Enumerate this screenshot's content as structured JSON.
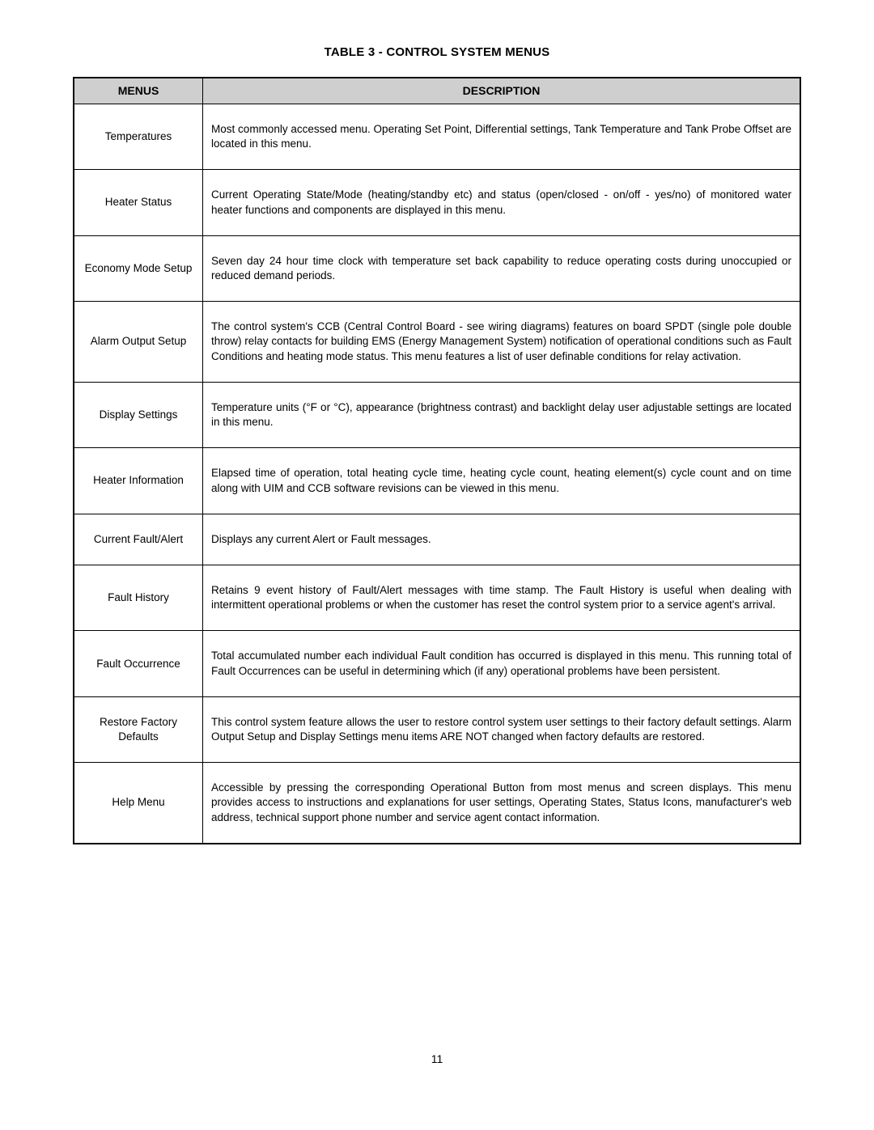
{
  "table": {
    "title": "TABLE 3 - CONTROL SYSTEM MENUS",
    "columns": {
      "menu": "MENUS",
      "description": "DESCRIPTION"
    },
    "header_bg": "#cfcfcf",
    "border_color": "#000000",
    "rows": [
      {
        "menu": "Temperatures",
        "description": "Most commonly accessed menu. Operating Set Point, Differential settings, Tank Temperature and Tank Probe Offset are located in this menu."
      },
      {
        "menu": "Heater Status",
        "description": "Current Operating State/Mode (heating/standby etc) and status (open/closed - on/off - yes/no) of monitored water heater functions and components are displayed in this menu."
      },
      {
        "menu": "Economy Mode Setup",
        "description": "Seven day 24 hour time clock with temperature set back capability to reduce operating costs during unoccupied or reduced demand periods."
      },
      {
        "menu": "Alarm Output Setup",
        "description": "The control system's CCB (Central Control Board - see wiring diagrams) features on board SPDT (single pole double throw) relay contacts for building EMS (Energy Management System) notification of operational conditions such as Fault Conditions and heating mode status. This menu features a list of user definable conditions for relay activation."
      },
      {
        "menu": "Display Settings",
        "description": "Temperature units (°F or °C), appearance (brightness contrast) and backlight delay user adjustable settings are located in this menu."
      },
      {
        "menu": "Heater Information",
        "description": "Elapsed time of operation, total heating cycle time, heating cycle count, heating element(s) cycle count and on time along with UIM and CCB software revisions can be viewed in this menu."
      },
      {
        "menu": "Current Fault/Alert",
        "description": "Displays any current Alert or Fault messages."
      },
      {
        "menu": "Fault History",
        "description": "Retains 9 event history of Fault/Alert messages with time stamp. The Fault History is useful when dealing with intermittent operational problems or when the customer has reset the control system prior to a service agent's arrival."
      },
      {
        "menu": "Fault Occurrence",
        "description": "Total accumulated number each individual Fault condition has occurred is displayed in this menu. This running total of Fault Occurrences can be useful in determining which (if any) operational problems have been persistent."
      },
      {
        "menu": "Restore Factory Defaults",
        "description": "This control system feature allows the user to restore control system user settings to their factory default settings. Alarm Output Setup and Display Settings menu items ARE NOT changed when factory defaults are restored."
      },
      {
        "menu": "Help Menu",
        "description": "Accessible by pressing the corresponding Operational Button from most menus and screen displays. This menu provides access to instructions and explanations for user settings, Operating States, Status Icons, manufacturer's web address, technical support phone number and service agent contact information."
      }
    ]
  },
  "page_number": "11"
}
